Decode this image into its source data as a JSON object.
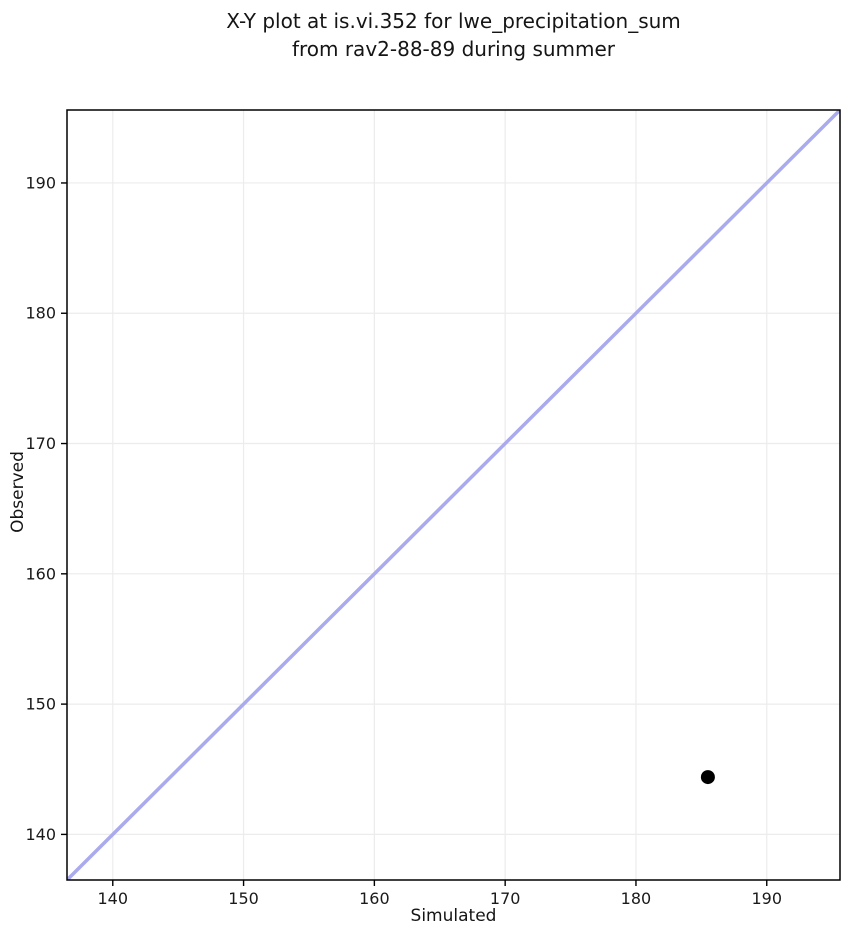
{
  "chart_data": {
    "type": "scatter",
    "title": "X-Y plot at is.vi.352 for lwe_precipitation_sum\nfrom rav2-88-89 during summer",
    "xlabel": "Simulated",
    "ylabel": "Observed",
    "xlim": [
      136.5,
      195.6
    ],
    "ylim": [
      136.5,
      195.6
    ],
    "x_ticks": [
      140,
      150,
      160,
      170,
      180,
      190
    ],
    "y_ticks": [
      140,
      150,
      160,
      170,
      180,
      190
    ],
    "grid": true,
    "legend_position": "none",
    "series": [
      {
        "name": "observed-vs-simulated",
        "marker": "circle",
        "color": "#000000",
        "points": [
          {
            "x": 185.5,
            "y": 144.4
          }
        ]
      }
    ],
    "reference_line": {
      "name": "identity-1to1-line",
      "x0": 136.5,
      "y0": 136.5,
      "x1": 195.6,
      "y1": 195.6,
      "color": "#aaaaee"
    }
  },
  "style": {
    "background": "#ffffff",
    "grid_color": "#ececec",
    "spine_color": "#000000",
    "text_color": "#1a1a1a"
  }
}
